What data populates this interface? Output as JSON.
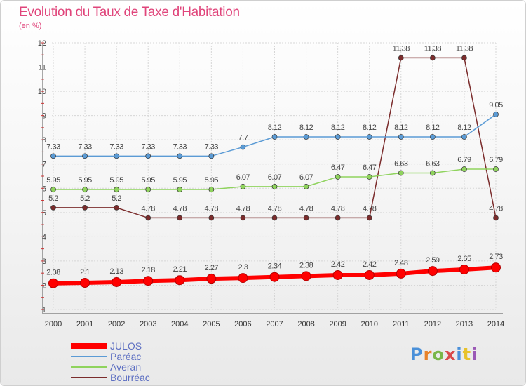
{
  "title": "Evolution du Taux de Taxe d'Habitation",
  "subtitle": "(en %)",
  "logo": {
    "text": "Proxiti",
    "colors": [
      "#4a90d9",
      "#e8822a",
      "#7ab648",
      "#d94a4a",
      "#4a90d9",
      "#e8c22a",
      "#9b59b6"
    ]
  },
  "chart_data": {
    "type": "line",
    "x": [
      "2000",
      "2001",
      "2002",
      "2003",
      "2004",
      "2005",
      "2006",
      "2007",
      "2008",
      "2009",
      "2010",
      "2011",
      "2012",
      "2013",
      "2014"
    ],
    "ylim": [
      1,
      12
    ],
    "yticks": [
      "1",
      "2",
      "3",
      "4",
      "5",
      "6",
      "7",
      "8",
      "9",
      "10",
      "11",
      "12"
    ],
    "grid": true,
    "legend_position": "bottom-left",
    "series": [
      {
        "name": "JULOS",
        "color": "#ff0000",
        "values": [
          2.08,
          2.1,
          2.13,
          2.18,
          2.21,
          2.27,
          2.3,
          2.34,
          2.38,
          2.42,
          2.42,
          2.48,
          2.59,
          2.65,
          2.73
        ],
        "labels": [
          "2.08",
          "2.1",
          "2.13",
          "2.18",
          "2.21",
          "2.27",
          "2.3",
          "2.34",
          "2.38",
          "2.42",
          "2.42",
          "2.48",
          "2.59",
          "2.65",
          "2.73"
        ]
      },
      {
        "name": "Paréac",
        "color": "#5b9bd5",
        "values": [
          7.33,
          7.33,
          7.33,
          7.33,
          7.33,
          7.33,
          7.7,
          8.12,
          8.12,
          8.12,
          8.12,
          8.12,
          8.12,
          8.12,
          9.05
        ],
        "labels": [
          "7.33",
          "7.33",
          "7.33",
          "7.33",
          "7.33",
          "7.33",
          "7.7",
          "8.12",
          "8.12",
          "8.12",
          "8.12",
          "8.12",
          "8.12",
          "8.12",
          "9.05"
        ]
      },
      {
        "name": "Averan",
        "color": "#8fd35d",
        "values": [
          5.95,
          5.95,
          5.95,
          5.95,
          5.95,
          5.95,
          6.07,
          6.07,
          6.07,
          6.47,
          6.47,
          6.63,
          6.63,
          6.79,
          6.79
        ],
        "labels": [
          "5.95",
          "5.95",
          "5.95",
          "5.95",
          "5.95",
          "5.95",
          "6.07",
          "6.07",
          "6.07",
          "6.47",
          "6.47",
          "6.63",
          "6.63",
          "6.79",
          "6.79"
        ]
      },
      {
        "name": "Bourréac",
        "color": "#7b2c2c",
        "values": [
          5.2,
          5.2,
          5.2,
          4.78,
          4.78,
          4.78,
          4.78,
          4.78,
          4.78,
          4.78,
          4.78,
          11.38,
          11.38,
          11.38,
          4.78
        ],
        "labels": [
          "5.2",
          "5.2",
          "5.2",
          "4.78",
          "4.78",
          "4.78",
          "4.78",
          "4.78",
          "4.78",
          "4.78",
          "4.78",
          "11.38",
          "11.38",
          "11.38",
          "4.78"
        ]
      }
    ]
  }
}
